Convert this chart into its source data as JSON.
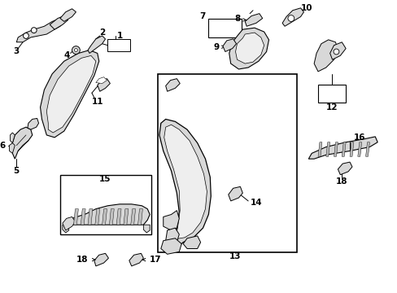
{
  "background_color": "#ffffff",
  "line_color": "#000000",
  "gray_fill": "#d8d8d8",
  "light_gray": "#eeeeee",
  "box_fill": "#f5f5f5",
  "fs_label": 7.5,
  "fs_small": 6.5
}
